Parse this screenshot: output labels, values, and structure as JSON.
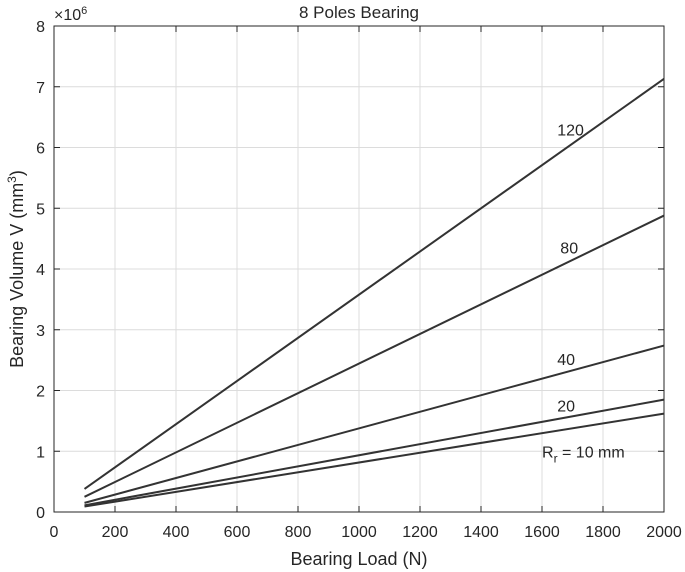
{
  "chart_data": {
    "type": "line",
    "title": "8 Poles Bearing",
    "xlabel": "Bearing Load (N)",
    "ylabel": "Bearing Volume V (mm",
    "ylabel_superscript": "3",
    "ylabel_suffix": ")",
    "y_exponent_label": "×10",
    "y_exponent_value": "6",
    "xlim": [
      0,
      2000
    ],
    "ylim": [
      0,
      8
    ],
    "x_ticks": [
      0,
      200,
      400,
      600,
      800,
      1000,
      1200,
      1400,
      1600,
      1800,
      2000
    ],
    "y_ticks": [
      0,
      1,
      2,
      3,
      4,
      5,
      6,
      7,
      8
    ],
    "grid": true,
    "line_color": "#333333",
    "grid_color": "#dcdcdc",
    "series": [
      {
        "name": "R",
        "label_subscript": "r",
        "label_suffix": " = 10 mm",
        "x": [
          100,
          2000
        ],
        "y": [
          0.09,
          1.62
        ],
        "label_at": [
          1600,
          1.0
        ]
      },
      {
        "name": "20",
        "x": [
          100,
          2000
        ],
        "y": [
          0.11,
          1.85
        ],
        "label_at": [
          1650,
          1.75
        ]
      },
      {
        "name": "40",
        "x": [
          100,
          2000
        ],
        "y": [
          0.15,
          2.74
        ],
        "label_at": [
          1650,
          2.52
        ]
      },
      {
        "name": "80",
        "x": [
          100,
          2000
        ],
        "y": [
          0.25,
          4.88
        ],
        "label_at": [
          1660,
          4.35
        ]
      },
      {
        "name": "120",
        "x": [
          100,
          2000
        ],
        "y": [
          0.38,
          7.13
        ],
        "label_at": [
          1650,
          6.3
        ]
      }
    ]
  }
}
